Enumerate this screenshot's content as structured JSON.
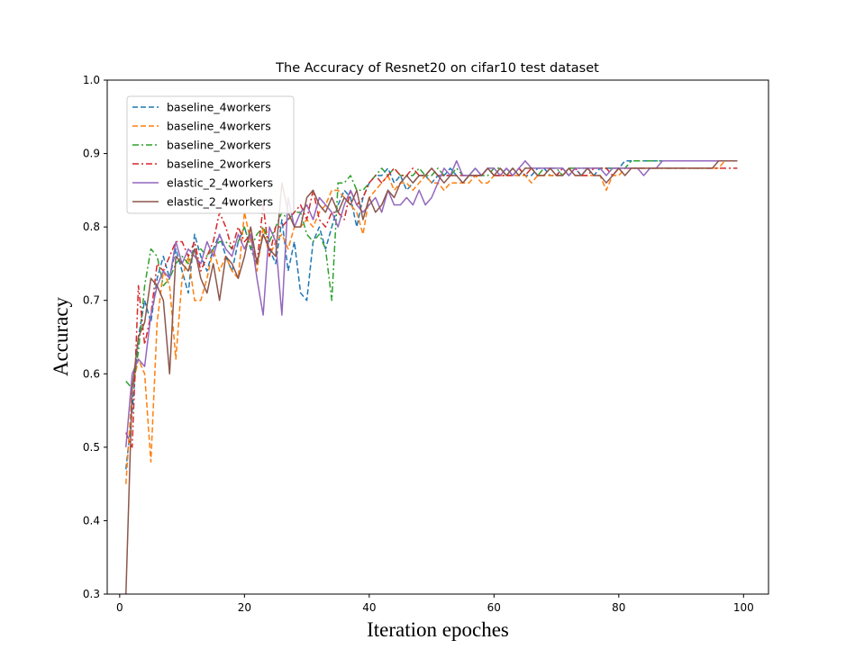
{
  "chart_data": {
    "type": "line",
    "title": "The Accuracy of Resnet20 on cifar10 test dataset",
    "xlabel": "Iteration epoches",
    "ylabel": "Accuracy",
    "xlim": [
      -2,
      104
    ],
    "ylim": [
      0.3,
      1.0
    ],
    "xticks": [
      "0",
      "20",
      "40",
      "60",
      "80",
      "100"
    ],
    "yticks": [
      "0.3",
      "0.4",
      "0.5",
      "0.6",
      "0.7",
      "0.8",
      "0.9",
      "1.0"
    ],
    "grid": false,
    "legend_position": "upper-left",
    "x_start": 1,
    "x_step": 1,
    "series": [
      {
        "name": "baseline_4workers",
        "color": "#1f77b4",
        "dash": "dashed",
        "values": [
          0.47,
          0.55,
          0.65,
          0.7,
          0.67,
          0.73,
          0.76,
          0.73,
          0.77,
          0.74,
          0.71,
          0.79,
          0.76,
          0.74,
          0.77,
          0.79,
          0.76,
          0.74,
          0.78,
          0.8,
          0.77,
          0.75,
          0.79,
          0.77,
          0.75,
          0.81,
          0.74,
          0.78,
          0.71,
          0.7,
          0.78,
          0.8,
          0.77,
          0.8,
          0.83,
          0.85,
          0.84,
          0.8,
          0.84,
          0.86,
          0.87,
          0.87,
          0.88,
          0.86,
          0.87,
          0.85,
          0.86,
          0.87,
          0.87,
          0.86,
          0.87,
          0.87,
          0.88,
          0.87,
          0.86,
          0.87,
          0.87,
          0.87,
          0.88,
          0.87,
          0.87,
          0.88,
          0.87,
          0.88,
          0.87,
          0.87,
          0.88,
          0.88,
          0.87,
          0.87,
          0.88,
          0.87,
          0.88,
          0.87,
          0.88,
          0.87,
          0.88,
          0.88,
          0.88,
          0.88,
          0.89,
          0.89,
          0.89,
          0.89,
          0.89,
          0.89,
          0.89,
          0.89,
          0.89,
          0.89,
          0.89,
          0.89,
          0.89,
          0.89,
          0.89,
          0.89,
          0.89,
          0.89,
          0.89
        ]
      },
      {
        "name": "baseline_4workers",
        "color": "#ff7f0e",
        "dash": "dashed",
        "values": [
          0.45,
          0.58,
          0.62,
          0.6,
          0.48,
          0.67,
          0.74,
          0.72,
          0.62,
          0.73,
          0.76,
          0.7,
          0.7,
          0.73,
          0.77,
          0.74,
          0.76,
          0.74,
          0.73,
          0.82,
          0.78,
          0.74,
          0.8,
          0.76,
          0.78,
          0.79,
          0.77,
          0.8,
          0.8,
          0.81,
          0.8,
          0.82,
          0.83,
          0.85,
          0.85,
          0.84,
          0.83,
          0.82,
          0.79,
          0.84,
          0.85,
          0.86,
          0.87,
          0.85,
          0.86,
          0.86,
          0.85,
          0.86,
          0.87,
          0.86,
          0.86,
          0.85,
          0.86,
          0.86,
          0.86,
          0.86,
          0.87,
          0.86,
          0.86,
          0.87,
          0.87,
          0.87,
          0.87,
          0.87,
          0.87,
          0.86,
          0.87,
          0.87,
          0.87,
          0.87,
          0.87,
          0.88,
          0.87,
          0.87,
          0.87,
          0.87,
          0.87,
          0.85,
          0.87,
          0.87,
          0.88,
          0.88,
          0.88,
          0.88,
          0.88,
          0.88,
          0.88,
          0.88,
          0.88,
          0.88,
          0.88,
          0.88,
          0.88,
          0.88,
          0.88,
          0.88,
          0.89,
          0.89,
          0.89
        ]
      },
      {
        "name": "baseline_2workers",
        "color": "#2ca02c",
        "dash": "dashdot",
        "values": [
          0.59,
          0.58,
          0.63,
          0.72,
          0.77,
          0.76,
          0.72,
          0.73,
          0.75,
          0.76,
          0.75,
          0.77,
          0.77,
          0.76,
          0.77,
          0.78,
          0.78,
          0.77,
          0.78,
          0.8,
          0.77,
          0.79,
          0.8,
          0.78,
          0.8,
          0.82,
          0.81,
          0.82,
          0.82,
          0.79,
          0.78,
          0.79,
          0.77,
          0.7,
          0.86,
          0.86,
          0.87,
          0.85,
          0.85,
          0.86,
          0.87,
          0.88,
          0.87,
          0.88,
          0.87,
          0.87,
          0.87,
          0.88,
          0.87,
          0.87,
          0.88,
          0.87,
          0.87,
          0.88,
          0.87,
          0.87,
          0.88,
          0.87,
          0.87,
          0.88,
          0.88,
          0.87,
          0.88,
          0.87,
          0.88,
          0.88,
          0.87,
          0.88,
          0.88,
          0.88,
          0.87,
          0.88,
          0.88,
          0.88,
          0.88,
          0.88,
          0.88,
          0.88,
          0.88,
          0.88,
          0.88,
          0.89,
          0.89,
          0.89,
          0.89,
          0.89,
          0.89,
          0.89,
          0.89,
          0.89,
          0.89,
          0.89,
          0.89,
          0.89,
          0.89,
          0.89,
          0.89,
          0.89,
          0.89
        ]
      },
      {
        "name": "baseline_2workers",
        "color": "#d62728",
        "dash": "dashdot",
        "values": [
          0.52,
          0.5,
          0.72,
          0.64,
          0.68,
          0.75,
          0.74,
          0.76,
          0.78,
          0.78,
          0.76,
          0.78,
          0.74,
          0.76,
          0.78,
          0.82,
          0.8,
          0.77,
          0.8,
          0.78,
          0.79,
          0.75,
          0.83,
          0.76,
          0.8,
          0.8,
          0.81,
          0.82,
          0.83,
          0.81,
          0.85,
          0.81,
          0.8,
          0.82,
          0.82,
          0.81,
          0.85,
          0.83,
          0.84,
          0.86,
          0.87,
          0.86,
          0.87,
          0.88,
          0.87,
          0.87,
          0.88,
          0.87,
          0.87,
          0.88,
          0.87,
          0.87,
          0.87,
          0.87,
          0.87,
          0.87,
          0.87,
          0.87,
          0.88,
          0.87,
          0.87,
          0.87,
          0.87,
          0.88,
          0.87,
          0.88,
          0.87,
          0.87,
          0.88,
          0.87,
          0.88,
          0.87,
          0.88,
          0.87,
          0.87,
          0.88,
          0.88,
          0.88,
          0.87,
          0.88,
          0.88,
          0.88,
          0.88,
          0.88,
          0.88,
          0.88,
          0.88,
          0.88,
          0.88,
          0.88,
          0.88,
          0.88,
          0.88,
          0.88,
          0.88,
          0.88,
          0.88,
          0.88,
          0.88
        ]
      },
      {
        "name": "elastic_2_4workers",
        "color": "#9467bd",
        "dash": "solid",
        "values": [
          0.5,
          0.6,
          0.62,
          0.61,
          0.68,
          0.72,
          0.74,
          0.73,
          0.78,
          0.75,
          0.77,
          0.76,
          0.75,
          0.78,
          0.76,
          0.79,
          0.77,
          0.76,
          0.79,
          0.77,
          0.79,
          0.73,
          0.68,
          0.8,
          0.78,
          0.68,
          0.84,
          0.8,
          0.82,
          0.83,
          0.81,
          0.84,
          0.83,
          0.82,
          0.8,
          0.83,
          0.85,
          0.83,
          0.82,
          0.83,
          0.84,
          0.82,
          0.85,
          0.83,
          0.83,
          0.84,
          0.83,
          0.85,
          0.83,
          0.84,
          0.86,
          0.88,
          0.87,
          0.89,
          0.87,
          0.87,
          0.88,
          0.87,
          0.88,
          0.88,
          0.87,
          0.88,
          0.87,
          0.88,
          0.89,
          0.88,
          0.88,
          0.88,
          0.88,
          0.88,
          0.88,
          0.87,
          0.88,
          0.88,
          0.88,
          0.88,
          0.88,
          0.87,
          0.88,
          0.88,
          0.88,
          0.88,
          0.88,
          0.87,
          0.88,
          0.88,
          0.89,
          0.89,
          0.89,
          0.89,
          0.89,
          0.89,
          0.89,
          0.89,
          0.89,
          0.89,
          0.89,
          0.89,
          0.89
        ]
      },
      {
        "name": "elastic_2_4workers",
        "color": "#8c564b",
        "dash": "solid",
        "values": [
          0.3,
          0.58,
          0.65,
          0.67,
          0.73,
          0.72,
          0.7,
          0.6,
          0.76,
          0.75,
          0.74,
          0.77,
          0.73,
          0.71,
          0.75,
          0.7,
          0.76,
          0.75,
          0.73,
          0.76,
          0.8,
          0.75,
          0.79,
          0.77,
          0.76,
          0.86,
          0.82,
          0.8,
          0.8,
          0.84,
          0.85,
          0.83,
          0.82,
          0.84,
          0.82,
          0.84,
          0.83,
          0.85,
          0.81,
          0.84,
          0.82,
          0.83,
          0.85,
          0.84,
          0.86,
          0.87,
          0.86,
          0.87,
          0.87,
          0.88,
          0.87,
          0.86,
          0.87,
          0.87,
          0.86,
          0.87,
          0.87,
          0.87,
          0.88,
          0.87,
          0.88,
          0.87,
          0.88,
          0.87,
          0.88,
          0.88,
          0.87,
          0.87,
          0.88,
          0.87,
          0.87,
          0.88,
          0.87,
          0.87,
          0.88,
          0.87,
          0.87,
          0.86,
          0.87,
          0.88,
          0.87,
          0.88,
          0.88,
          0.88,
          0.88,
          0.88,
          0.88,
          0.88,
          0.88,
          0.88,
          0.88,
          0.88,
          0.88,
          0.88,
          0.88,
          0.89,
          0.89,
          0.89,
          0.89
        ]
      }
    ]
  }
}
